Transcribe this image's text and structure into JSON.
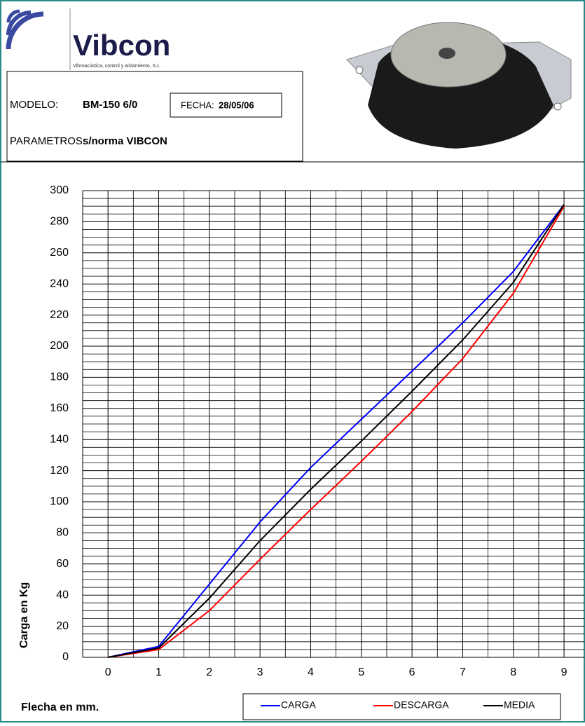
{
  "header": {
    "logo_name": "Vibcon",
    "logo_tagline": "Vibroacústica, control y aislamiento, S.L.",
    "model_label": "MODELO:",
    "model_value": "BM-150 6/0",
    "date_label": "FECHA:",
    "date_value": "28/05/06",
    "params_label": "PARAMETROS:",
    "params_value": "s/norma VIBCON"
  },
  "chart_data": {
    "type": "line",
    "x_label": "Flecha en mm.",
    "y_label": "Carga en Kg",
    "x": [
      0,
      1,
      2,
      3,
      4,
      5,
      6,
      7,
      8,
      9
    ],
    "series": [
      {
        "name": "CARGA",
        "color": "#0000ff",
        "values": [
          0,
          7,
          47,
          87,
          122,
          153,
          184,
          215,
          248,
          291
        ]
      },
      {
        "name": "DESCARGA",
        "color": "#ff0000",
        "values": [
          0,
          5,
          30,
          63,
          95,
          126,
          158,
          192,
          234,
          290
        ]
      },
      {
        "name": "MEDIA",
        "color": "#000000",
        "values": [
          0,
          6,
          38,
          75,
          108,
          139,
          171,
          204,
          241,
          291
        ]
      }
    ],
    "xlim": [
      -0.5,
      9.4
    ],
    "xticks": [
      0,
      1,
      2,
      3,
      4,
      5,
      6,
      7,
      8,
      9
    ],
    "ylim": [
      0,
      300
    ],
    "yticks": [
      0,
      20,
      40,
      60,
      80,
      100,
      120,
      140,
      160,
      180,
      200,
      220,
      240,
      260,
      280,
      300
    ],
    "grid": true
  }
}
